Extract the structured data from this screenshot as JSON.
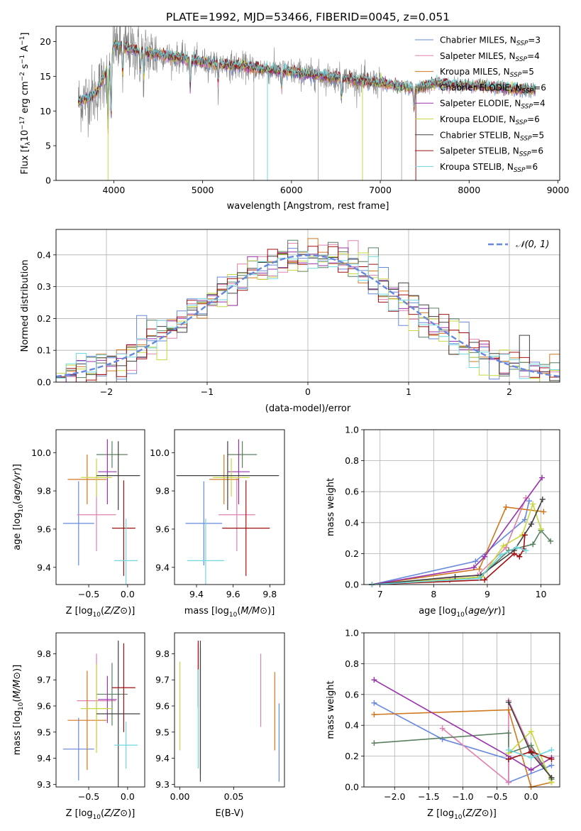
{
  "title": "PLATE=1992, MJD=53466, FIBERID=0045, z=0.051",
  "colors": [
    "#6688dd",
    "#e080b0",
    "#d07820",
    "#5a8060",
    "#9933aa",
    "#c8d840",
    "#404040",
    "#a01010",
    "#70d8e0"
  ],
  "chart_data": [
    {
      "type": "line",
      "id": "spectrum",
      "xlabel": "wavelength [Angstrom, rest frame]",
      "ylabel": "Flux [fλ10−17 erg cm−2 s−1 A−1]",
      "xlim": [
        3350,
        9020
      ],
      "ylim": [
        0,
        22.2
      ],
      "xticks": [
        4000,
        5000,
        6000,
        7000,
        8000,
        9000
      ],
      "yticks": [
        0,
        5,
        10,
        15,
        20
      ],
      "data_range": [
        3600,
        8750
      ],
      "continuum": [
        [
          3600,
          11.3
        ],
        [
          3800,
          12.5
        ],
        [
          3950,
          16.5
        ],
        [
          4000,
          19.5
        ],
        [
          4300,
          18.5
        ],
        [
          4600,
          18.0
        ],
        [
          5000,
          17.0
        ],
        [
          5500,
          16.3
        ],
        [
          6000,
          15.6
        ],
        [
          6500,
          14.8
        ],
        [
          7000,
          14.0
        ],
        [
          7400,
          13.2
        ],
        [
          7600,
          14.0
        ],
        [
          8000,
          13.7
        ],
        [
          8500,
          13.2
        ],
        [
          8750,
          13.0
        ]
      ],
      "series": [
        {
          "name": "Chabrier MILES, N_SSP=3",
          "color": "#6688dd"
        },
        {
          "name": "Salpeter MILES, N_SSP=4",
          "color": "#e080b0"
        },
        {
          "name": "Kroupa MILES, N_SSP=5",
          "color": "#d07820"
        },
        {
          "name": "Chabrier ELODIE, N_SSP=6",
          "color": "#5a8060"
        },
        {
          "name": "Salpeter ELODIE, N_SSP=4",
          "color": "#9933aa"
        },
        {
          "name": "Kroupa ELODIE, N_SSP=6",
          "color": "#c8d840"
        },
        {
          "name": "Chabrier STELIB, N_SSP=5",
          "color": "#404040"
        },
        {
          "name": "Salpeter STELIB, N_SSP=6",
          "color": "#a01010"
        },
        {
          "name": "Kroupa STELIB, N_SSP=6",
          "color": "#70d8e0"
        }
      ],
      "legend_labels": [
        [
          "Chabrier MILES, N",
          "SSP",
          "=3"
        ],
        [
          "Salpeter MILES, N",
          "SSP",
          "=4"
        ],
        [
          "Kroupa MILES, N",
          "SSP",
          "=5"
        ],
        [
          "Chabrier ELODIE, N",
          "SSP",
          "=6"
        ],
        [
          "Salpeter ELODIE, N",
          "SSP",
          "=4"
        ],
        [
          "Kroupa ELODIE, N",
          "SSP",
          "=6"
        ],
        [
          "Chabrier STELIB, N",
          "SSP",
          "=5"
        ],
        [
          "Salpeter STELIB, N",
          "SSP",
          "=6"
        ],
        [
          "Kroupa STELIB, N",
          "SSP",
          "=6"
        ]
      ],
      "legend": "top-right"
    },
    {
      "type": "line",
      "id": "residuals",
      "xlabel": "(data-model)/error",
      "ylabel": "Normed distribution",
      "xlim": [
        -2.5,
        2.5
      ],
      "ylim": [
        0,
        0.48
      ],
      "xticks": [
        -2,
        -1,
        0,
        1,
        2
      ],
      "yticks": [
        0.0,
        0.1,
        0.2,
        0.3,
        0.4
      ],
      "grid": true,
      "legend": "top-right",
      "legend_label": "𝒩(0, 1)",
      "gaussian_color": "#6688dd",
      "hist_bin_width": 0.1
    },
    {
      "type": "scatter",
      "id": "age_vs_Z",
      "xlabel": "Z [log10(Z/Z⊙)]",
      "ylabel": "age  [log10(age/yr)]",
      "xlim": [
        -0.92,
        0.22
      ],
      "ylim": [
        9.31,
        10.12
      ],
      "xticks": [
        -0.5,
        0.0
      ],
      "yticks": [
        9.4,
        9.6,
        9.8,
        10.0
      ],
      "points": [
        {
          "x": -0.63,
          "y": 9.63,
          "xerr": 0.2,
          "yerr": 0.22,
          "color": "#6688dd"
        },
        {
          "x": -0.4,
          "y": 9.675,
          "xerr": 0.25,
          "yerr": 0.19,
          "color": "#e080b0"
        },
        {
          "x": -0.52,
          "y": 9.86,
          "xerr": 0.25,
          "yerr": 0.13,
          "color": "#d07820"
        },
        {
          "x": -0.2,
          "y": 9.99,
          "xerr": 0.2,
          "yerr": 0.07,
          "color": "#5a8060"
        },
        {
          "x": -0.26,
          "y": 9.9,
          "xerr": 0.12,
          "yerr": 0.17,
          "color": "#9933aa"
        },
        {
          "x": -0.4,
          "y": 9.87,
          "xerr": 0.2,
          "yerr": 0.1,
          "color": "#c8d840"
        },
        {
          "x": -0.12,
          "y": 9.88,
          "xerr": 0.28,
          "yerr": 0.18,
          "color": "#404040"
        },
        {
          "x": -0.05,
          "y": 9.605,
          "xerr": 0.15,
          "yerr": 0.25,
          "color": "#a01010"
        },
        {
          "x": -0.02,
          "y": 9.435,
          "xerr": 0.15,
          "yerr": 0.22,
          "color": "#70d8e0"
        }
      ]
    },
    {
      "type": "scatter",
      "id": "age_vs_mass",
      "xlabel": "mass [log10(M/M⊙)]",
      "ylabel": "",
      "xlim": [
        9.28,
        9.88
      ],
      "ylim": [
        9.31,
        10.12
      ],
      "xticks": [
        9.4,
        9.6,
        9.8
      ],
      "yticks": [
        9.4,
        9.6,
        9.8,
        10.0
      ],
      "points": [
        {
          "x": 9.44,
          "y": 9.63,
          "xerr": 0.1,
          "yerr": 0.22,
          "color": "#6688dd"
        },
        {
          "x": 9.62,
          "y": 9.675,
          "xerr": 0.1,
          "yerr": 0.19,
          "color": "#e080b0"
        },
        {
          "x": 9.55,
          "y": 9.86,
          "xerr": 0.08,
          "yerr": 0.13,
          "color": "#d07820"
        },
        {
          "x": 9.65,
          "y": 9.99,
          "xerr": 0.08,
          "yerr": 0.07,
          "color": "#5a8060"
        },
        {
          "x": 9.63,
          "y": 9.9,
          "xerr": 0.06,
          "yerr": 0.17,
          "color": "#9933aa"
        },
        {
          "x": 9.59,
          "y": 9.87,
          "xerr": 0.1,
          "yerr": 0.1,
          "color": "#c8d840"
        },
        {
          "x": 9.57,
          "y": 9.88,
          "xerr": 0.28,
          "yerr": 0.18,
          "color": "#404040"
        },
        {
          "x": 9.67,
          "y": 9.605,
          "xerr": 0.13,
          "yerr": 0.25,
          "color": "#a01010"
        },
        {
          "x": 9.45,
          "y": 9.435,
          "xerr": 0.1,
          "yerr": 0.22,
          "color": "#70d8e0"
        }
      ]
    },
    {
      "type": "line",
      "id": "weight_vs_age",
      "xlabel": "age  [log10(age/yr)]",
      "ylabel": "mass weight",
      "xlim": [
        6.7,
        10.35
      ],
      "ylim": [
        0,
        1.0
      ],
      "xticks": [
        7,
        8,
        9,
        10
      ],
      "yticks": [
        0.0,
        0.2,
        0.4,
        0.6,
        0.8,
        1.0
      ],
      "grid": true,
      "series": [
        {
          "color": "#6688dd",
          "x": [
            6.85,
            8.78,
            9.7,
            9.78
          ],
          "y": [
            0.0,
            0.15,
            0.42,
            0.54
          ]
        },
        {
          "color": "#e080b0",
          "x": [
            6.85,
            8.82,
            9.35,
            9.72
          ],
          "y": [
            0.0,
            0.06,
            0.24,
            0.56
          ]
        },
        {
          "color": "#d07820",
          "x": [
            6.85,
            8.85,
            9.35,
            10.05
          ],
          "y": [
            0.0,
            0.1,
            0.5,
            0.47
          ]
        },
        {
          "color": "#5a8060",
          "x": [
            6.85,
            8.3,
            8.88,
            9.4,
            9.85,
            10.0,
            10.18
          ],
          "y": [
            0.0,
            0.03,
            0.05,
            0.22,
            0.26,
            0.35,
            0.28
          ]
        },
        {
          "color": "#9933aa",
          "x": [
            6.85,
            8.75,
            8.95,
            10.02
          ],
          "y": [
            0.0,
            0.11,
            0.18,
            0.69
          ]
        },
        {
          "color": "#c8d840",
          "x": [
            6.85,
            8.9,
            9.3,
            9.65,
            9.85,
            10.0
          ],
          "y": [
            0.0,
            0.05,
            0.25,
            0.32,
            0.52,
            0.36
          ]
        },
        {
          "color": "#404040",
          "x": [
            6.85,
            8.4,
            8.88,
            9.5,
            9.82,
            10.03
          ],
          "y": [
            0.0,
            0.05,
            0.06,
            0.22,
            0.39,
            0.55
          ]
        },
        {
          "color": "#a01010",
          "x": [
            6.85,
            8.95,
            9.5,
            9.6,
            9.68,
            9.7
          ],
          "y": [
            0.0,
            0.03,
            0.2,
            0.18,
            0.23,
            0.32
          ]
        },
        {
          "color": "#70d8e0",
          "x": [
            6.85,
            8.85,
            9.25,
            9.55,
            9.72
          ],
          "y": [
            0.0,
            0.04,
            0.19,
            0.24,
            0.22
          ]
        }
      ]
    },
    {
      "type": "scatter",
      "id": "mass_vs_Z",
      "xlabel": "Z [log10(Z/Z⊙)]",
      "ylabel": "mass [log10(M/M⊙)]",
      "xlim": [
        -0.92,
        0.22
      ],
      "ylim": [
        9.29,
        9.88
      ],
      "xticks": [
        -0.5,
        0.0
      ],
      "yticks": [
        9.3,
        9.4,
        9.5,
        9.6,
        9.7,
        9.8
      ],
      "points": [
        {
          "x": -0.63,
          "y": 9.435,
          "xerr": 0.2,
          "yerr": 0.12,
          "color": "#6688dd"
        },
        {
          "x": -0.4,
          "y": 9.62,
          "xerr": 0.25,
          "yerr": 0.18,
          "color": "#e080b0"
        },
        {
          "x": -0.52,
          "y": 9.545,
          "xerr": 0.25,
          "yerr": 0.19,
          "color": "#d07820"
        },
        {
          "x": -0.2,
          "y": 9.645,
          "xerr": 0.2,
          "yerr": 0.12,
          "color": "#5a8060"
        },
        {
          "x": -0.26,
          "y": 9.625,
          "xerr": 0.12,
          "yerr": 0.09,
          "color": "#9933aa"
        },
        {
          "x": -0.4,
          "y": 9.59,
          "xerr": 0.2,
          "yerr": 0.17,
          "color": "#c8d840"
        },
        {
          "x": -0.12,
          "y": 9.57,
          "xerr": 0.28,
          "yerr": 0.28,
          "color": "#404040"
        },
        {
          "x": -0.05,
          "y": 9.67,
          "xerr": 0.15,
          "yerr": 0.17,
          "color": "#a01010"
        },
        {
          "x": -0.02,
          "y": 9.45,
          "xerr": 0.15,
          "yerr": 0.09,
          "color": "#70d8e0"
        }
      ]
    },
    {
      "type": "scatter",
      "id": "mass_vs_EBV",
      "xlabel": "E(B-V)",
      "ylabel": "",
      "xlim": [
        -0.005,
        0.097
      ],
      "ylim": [
        9.29,
        9.88
      ],
      "xticks": [
        0.0,
        0.05
      ],
      "yticks": [
        9.3,
        9.4,
        9.5,
        9.6,
        9.7,
        9.8
      ],
      "points": [
        {
          "x": 0.092,
          "y": 9.46,
          "xerr": 0,
          "yerr": 0.15,
          "color": "#6688dd"
        },
        {
          "x": 0.075,
          "y": 9.66,
          "xerr": 0,
          "yerr": 0.14,
          "color": "#e080b0"
        },
        {
          "x": 0.088,
          "y": 9.58,
          "xerr": 0,
          "yerr": 0.15,
          "color": "#d07820"
        },
        {
          "x": 0.019,
          "y": 9.58,
          "xerr": 0,
          "yerr": 0.24,
          "color": "#5a8060"
        },
        {
          "x": 0.017,
          "y": 9.72,
          "xerr": 0,
          "yerr": 0.12,
          "color": "#9933aa"
        },
        {
          "x": 0.0,
          "y": 9.6,
          "xerr": 0,
          "yerr": 0.17,
          "color": "#c8d840"
        },
        {
          "x": 0.019,
          "y": 9.58,
          "xerr": 0,
          "yerr": 0.27,
          "color": "#404040"
        },
        {
          "x": 0.017,
          "y": 9.72,
          "xerr": 0,
          "yerr": 0.13,
          "color": "#a01010"
        },
        {
          "x": 0.017,
          "y": 9.55,
          "xerr": 0,
          "yerr": 0.19,
          "color": "#70d8e0"
        }
      ]
    },
    {
      "type": "line",
      "id": "weight_vs_Z",
      "xlabel": "Z [log10(Z/Z⊙)]",
      "ylabel": "mass weight",
      "xlim": [
        -2.45,
        0.42
      ],
      "ylim": [
        0,
        1.0
      ],
      "xticks": [
        -2.0,
        -1.5,
        -1.0,
        -0.5,
        0.0
      ],
      "yticks": [
        0.0,
        0.2,
        0.4,
        0.6,
        0.8,
        1.0
      ],
      "grid": true,
      "series": [
        {
          "color": "#6688dd",
          "x": [
            -2.3,
            -1.3,
            -0.33,
            -0.33,
            0.3
          ],
          "y": [
            0.545,
            0.31,
            0.18,
            0.03,
            0.14
          ]
        },
        {
          "color": "#e080b0",
          "x": [
            -1.3,
            -0.33,
            -0.33,
            0.0,
            0.3
          ],
          "y": [
            0.38,
            0.03,
            0.56,
            0.24,
            0.06
          ]
        },
        {
          "color": "#d07820",
          "x": [
            -2.3,
            -0.33,
            0.0,
            0.3
          ],
          "y": [
            0.47,
            0.5,
            0.0,
            0.03
          ]
        },
        {
          "color": "#5a8060",
          "x": [
            -2.3,
            -0.33,
            -0.33,
            0.0,
            0.3
          ],
          "y": [
            0.285,
            0.35,
            0.22,
            0.27,
            0.05
          ]
        },
        {
          "color": "#9933aa",
          "x": [
            -2.3,
            -0.33,
            0.0,
            0.3
          ],
          "y": [
            0.695,
            0.2,
            0.11,
            0.19
          ]
        },
        {
          "color": "#c8d840",
          "x": [
            -0.33,
            0.0,
            0.3
          ],
          "y": [
            0.22,
            0.36,
            0.03
          ]
        },
        {
          "color": "#404040",
          "x": [
            -0.33,
            0.0,
            0.3
          ],
          "y": [
            0.55,
            0.22,
            0.06
          ]
        },
        {
          "color": "#a01010",
          "x": [
            -0.33,
            0.0,
            0.3
          ],
          "y": [
            0.18,
            0.23,
            0.18
          ]
        },
        {
          "color": "#70d8e0",
          "x": [
            -0.33,
            0.0,
            0.3
          ],
          "y": [
            0.24,
            0.19,
            0.24
          ]
        }
      ]
    }
  ]
}
